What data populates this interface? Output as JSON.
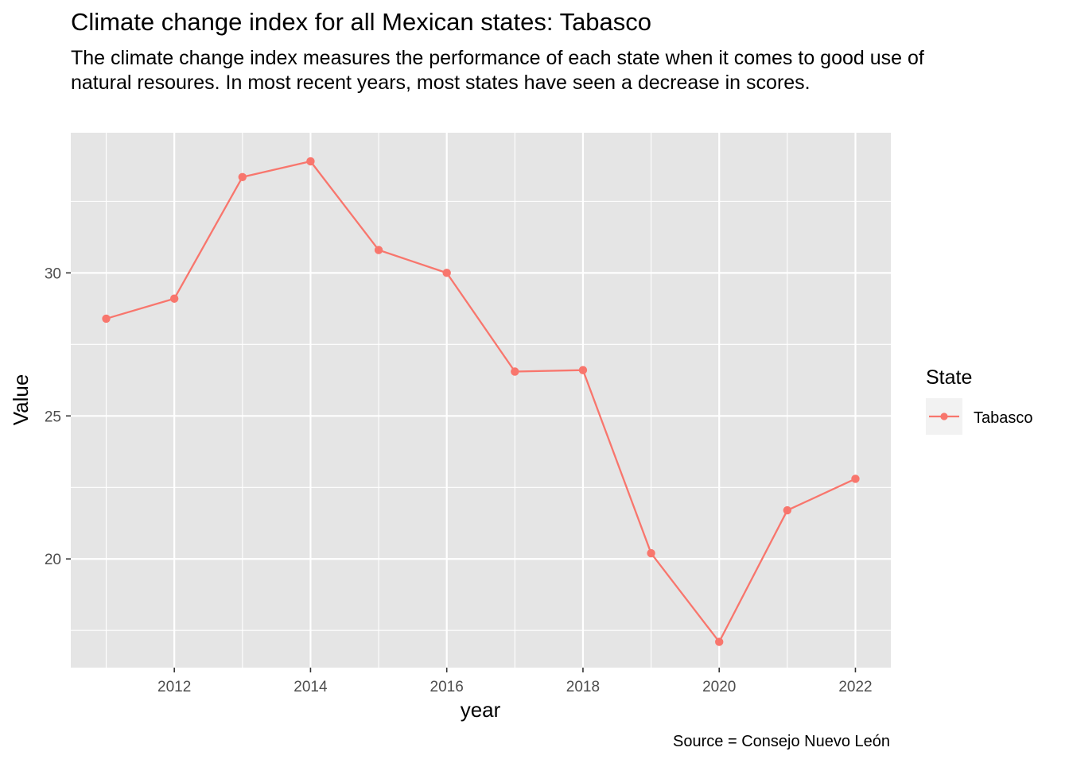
{
  "title": "Climate change index for all Mexican states: Tabasco",
  "subtitle": "The climate change index measures the performance of each state when it comes to good use of natural resoures. In most recent years, most states have seen a decrease in scores.",
  "caption": "Source = Consejo Nuevo León",
  "colors": {
    "panel": "#e5e5e5",
    "grid": "#ffffff",
    "series": "#f8766d",
    "legend_key_bg": "#f2f2f2"
  },
  "chart_data": {
    "type": "line",
    "xlabel": "year",
    "ylabel": "Value",
    "xlim": [
      2010.48,
      2022.52
    ],
    "ylim": [
      16.2,
      34.9
    ],
    "x_ticks": [
      2012,
      2014,
      2016,
      2018,
      2020,
      2022
    ],
    "y_ticks": [
      20,
      25,
      30
    ],
    "grid": true,
    "legend": {
      "title": "State",
      "position": "right"
    },
    "series": [
      {
        "name": "Tabasco",
        "x": [
          2011,
          2012,
          2013,
          2014,
          2015,
          2016,
          2017,
          2018,
          2019,
          2020,
          2021,
          2022
        ],
        "y": [
          28.4,
          29.1,
          33.35,
          33.9,
          30.8,
          30.0,
          26.55,
          26.6,
          20.2,
          17.1,
          21.7,
          22.8
        ]
      }
    ]
  }
}
